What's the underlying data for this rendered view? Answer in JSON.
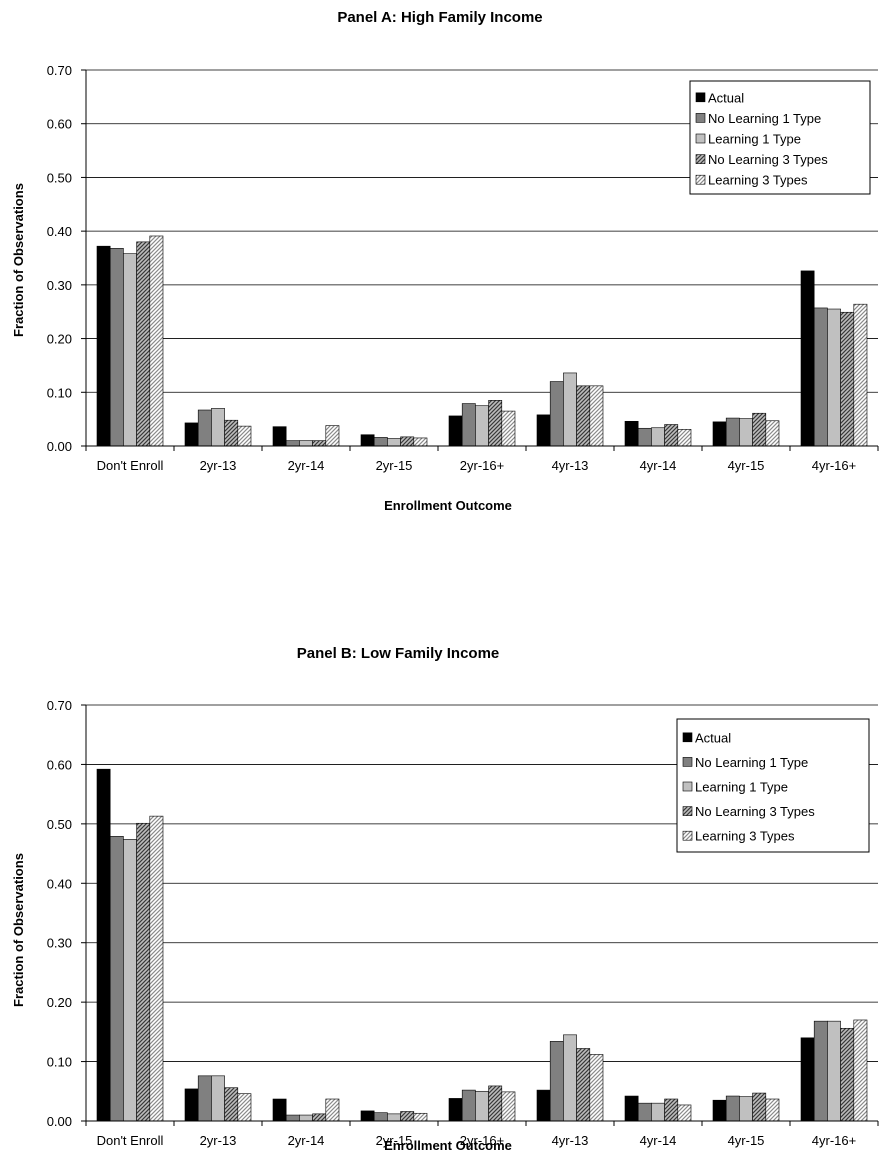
{
  "chart_data": [
    {
      "type": "bar",
      "title": "Panel A: High Family Income",
      "xlabel": "Enrollment Outcome",
      "ylabel": "Fraction of Observations",
      "ylim": [
        0,
        0.7
      ],
      "yticks": [
        "0.00",
        "0.10",
        "0.20",
        "0.30",
        "0.40",
        "0.50",
        "0.60",
        "0.70"
      ],
      "grid": true,
      "legend_position": "top-right",
      "categories": [
        "Don't Enroll",
        "2yr-13",
        "2yr-14",
        "2yr-15",
        "2yr-16+",
        "4yr-13",
        "4yr-14",
        "4yr-15",
        "4yr-16+"
      ],
      "series": [
        {
          "name": "Actual",
          "values": [
            0.372,
            0.043,
            0.036,
            0.021,
            0.056,
            0.058,
            0.046,
            0.045,
            0.326
          ]
        },
        {
          "name": "No Learning 1 Type",
          "values": [
            0.368,
            0.067,
            0.01,
            0.016,
            0.079,
            0.12,
            0.033,
            0.052,
            0.257
          ]
        },
        {
          "name": "Learning 1 Type",
          "values": [
            0.358,
            0.07,
            0.01,
            0.014,
            0.075,
            0.136,
            0.034,
            0.051,
            0.255
          ]
        },
        {
          "name": "No Learning 3 Types",
          "values": [
            0.38,
            0.048,
            0.01,
            0.017,
            0.085,
            0.112,
            0.04,
            0.061,
            0.249
          ]
        },
        {
          "name": "Learning 3 Types",
          "values": [
            0.391,
            0.037,
            0.038,
            0.015,
            0.065,
            0.112,
            0.031,
            0.047,
            0.264
          ]
        }
      ]
    },
    {
      "type": "bar",
      "title": "Panel B: Low Family Income",
      "xlabel": "Enrollment Outcome",
      "ylabel": "Fraction of Observations",
      "ylim": [
        0,
        0.7
      ],
      "yticks": [
        "0.00",
        "0.10",
        "0.20",
        "0.30",
        "0.40",
        "0.50",
        "0.60",
        "0.70"
      ],
      "grid": true,
      "legend_position": "top-right",
      "categories": [
        "Don't Enroll",
        "2yr-13",
        "2yr-14",
        "2yr-15",
        "2yr-16+",
        "4yr-13",
        "4yr-14",
        "4yr-15",
        "4yr-16+"
      ],
      "series": [
        {
          "name": "Actual",
          "values": [
            0.592,
            0.054,
            0.037,
            0.017,
            0.038,
            0.052,
            0.042,
            0.035,
            0.14
          ]
        },
        {
          "name": "No Learning 1 Type",
          "values": [
            0.479,
            0.076,
            0.01,
            0.014,
            0.052,
            0.134,
            0.03,
            0.042,
            0.168
          ]
        },
        {
          "name": "Learning 1 Type",
          "values": [
            0.474,
            0.076,
            0.01,
            0.012,
            0.05,
            0.145,
            0.03,
            0.041,
            0.168
          ]
        },
        {
          "name": "No Learning 3 Types",
          "values": [
            0.501,
            0.056,
            0.012,
            0.016,
            0.059,
            0.122,
            0.037,
            0.047,
            0.156
          ]
        },
        {
          "name": "Learning 3 Types",
          "values": [
            0.513,
            0.046,
            0.037,
            0.013,
            0.049,
            0.112,
            0.027,
            0.037,
            0.17
          ]
        }
      ]
    }
  ],
  "colors": {
    "actual": "#000000",
    "no_learning_1": "#808080",
    "learning_1": "#c0c0c0",
    "no_learning_3": "#8a8a8a",
    "learning_3": "#d8d8d8",
    "grid": "#000000"
  }
}
